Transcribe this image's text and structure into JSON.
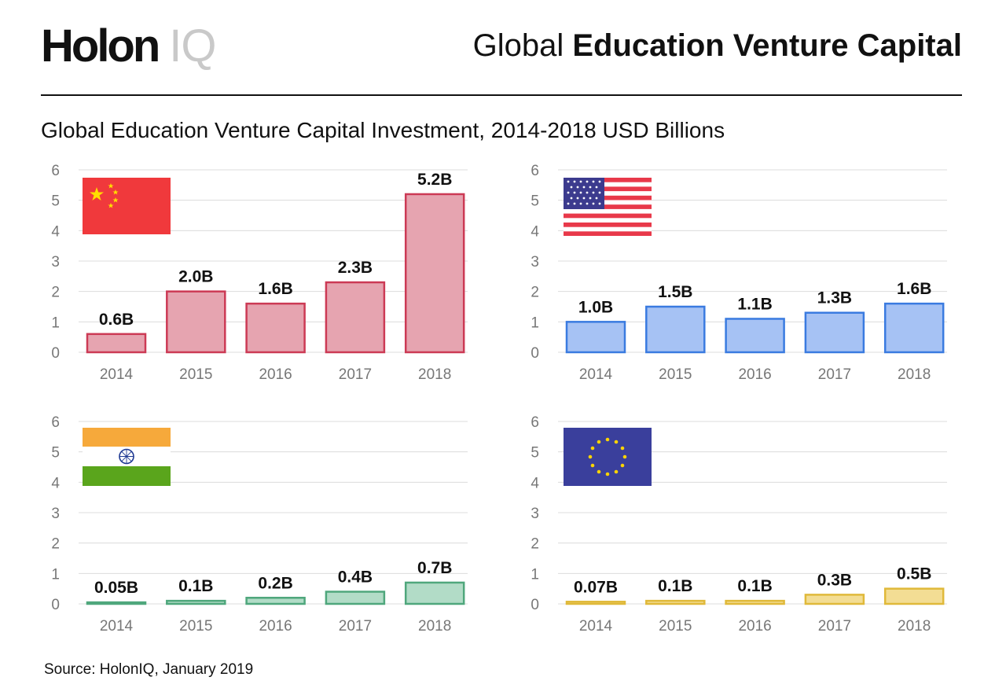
{
  "header": {
    "logo_main": "Holon",
    "logo_sub": "IQ",
    "title_light": "Global",
    "title_bold": "Education Venture Capital"
  },
  "subtitle": "Global Education Venture Capital Investment, 2014-2018 USD Billions",
  "source": "Source: HolonIQ, January 2019",
  "colors": {
    "china": {
      "fill": "#e6a4b0",
      "stroke": "#cc3a55"
    },
    "usa": {
      "fill": "#a6c2f4",
      "stroke": "#3a7be0"
    },
    "india": {
      "fill": "#b2dcc7",
      "stroke": "#4fa77c"
    },
    "eu": {
      "fill": "#f3dd94",
      "stroke": "#e0b93a"
    }
  },
  "chart_data": [
    {
      "type": "bar",
      "flag": "china-flag",
      "categories": [
        "2014",
        "2015",
        "2016",
        "2017",
        "2018"
      ],
      "values": [
        0.6,
        2.0,
        1.6,
        2.3,
        5.2
      ],
      "labels": [
        "0.6B",
        "2.0B",
        "1.6B",
        "2.3B",
        "5.2B"
      ],
      "yticks": [
        "0",
        "1",
        "2",
        "3",
        "4",
        "5",
        "6"
      ],
      "ylim": [
        0,
        6
      ]
    },
    {
      "type": "bar",
      "flag": "usa-flag",
      "categories": [
        "2014",
        "2015",
        "2016",
        "2017",
        "2018"
      ],
      "values": [
        1.0,
        1.5,
        1.1,
        1.3,
        1.6
      ],
      "labels": [
        "1.0B",
        "1.5B",
        "1.1B",
        "1.3B",
        "1.6B"
      ],
      "yticks": [
        "0",
        "1",
        "2",
        "3",
        "4",
        "5",
        "6"
      ],
      "ylim": [
        0,
        6
      ]
    },
    {
      "type": "bar",
      "flag": "india-flag",
      "categories": [
        "2014",
        "2015",
        "2016",
        "2017",
        "2018"
      ],
      "values": [
        0.05,
        0.1,
        0.2,
        0.4,
        0.7
      ],
      "labels": [
        "0.05B",
        "0.1B",
        "0.2B",
        "0.4B",
        "0.7B"
      ],
      "yticks": [
        "0",
        "1",
        "2",
        "3",
        "4",
        "5",
        "6"
      ],
      "ylim": [
        0,
        6
      ]
    },
    {
      "type": "bar",
      "flag": "eu-flag",
      "categories": [
        "2014",
        "2015",
        "2016",
        "2017",
        "2018"
      ],
      "values": [
        0.07,
        0.1,
        0.1,
        0.3,
        0.5
      ],
      "labels": [
        "0.07B",
        "0.1B",
        "0.1B",
        "0.3B",
        "0.5B"
      ],
      "yticks": [
        "0",
        "1",
        "2",
        "3",
        "4",
        "5",
        "6"
      ],
      "ylim": [
        0,
        6
      ]
    }
  ]
}
